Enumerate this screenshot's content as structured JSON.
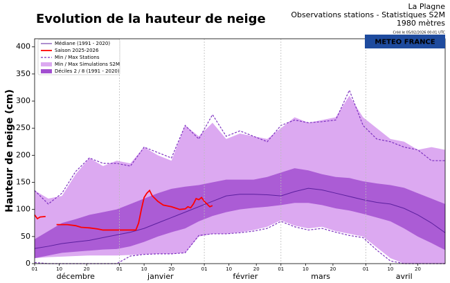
{
  "chart_data": {
    "type": "snow",
    "title": "Evolution de la hauteur de neige",
    "header_lines": [
      "La Plagne",
      "Observations stations - Statistiques S2M",
      "1980 mètres"
    ],
    "created": "Créé le 05/02/2026 00:01 UTC",
    "logo": "METEO FRANCE",
    "ylabel": "Hauteur de neige (cm)",
    "xlim": [
      0,
      150
    ],
    "ylim": [
      0,
      415
    ],
    "yticks": [
      0,
      50,
      100,
      150,
      200,
      250,
      300,
      350,
      400
    ],
    "xticks": [
      {
        "value": 0,
        "label": "01"
      },
      {
        "value": 9,
        "label": "10"
      },
      {
        "value": 19,
        "label": "20"
      },
      {
        "value": 31,
        "label": "01"
      },
      {
        "value": 40,
        "label": "10"
      },
      {
        "value": 50,
        "label": "20"
      },
      {
        "value": 62,
        "label": "01"
      },
      {
        "value": 71,
        "label": "10"
      },
      {
        "value": 81,
        "label": "20"
      },
      {
        "value": 90,
        "label": "01"
      },
      {
        "value": 99,
        "label": "10"
      },
      {
        "value": 109,
        "label": "20"
      },
      {
        "value": 121,
        "label": "01"
      },
      {
        "value": 130,
        "label": "10"
      },
      {
        "value": 140,
        "label": "20"
      }
    ],
    "month_labels": [
      {
        "value": 15,
        "label": "décembre"
      },
      {
        "value": 46,
        "label": "janvier"
      },
      {
        "value": 77,
        "label": "février"
      },
      {
        "value": 104.5,
        "label": "mars"
      },
      {
        "value": 135,
        "label": "avril"
      }
    ],
    "xgrid": [
      31,
      62,
      90,
      121
    ],
    "x": [
      0,
      5,
      10,
      15,
      20,
      25,
      30,
      35,
      40,
      45,
      50,
      55,
      60,
      65,
      70,
      75,
      80,
      85,
      90,
      95,
      100,
      105,
      110,
      115,
      120,
      125,
      130,
      135,
      140,
      145,
      150
    ],
    "series": [
      {
        "name": "Médiane (1991 - 2020)",
        "kind": "line",
        "color": "#5b1f9e",
        "values": [
          28,
          32,
          37,
          40,
          43,
          48,
          53,
          58,
          65,
          75,
          85,
          95,
          105,
          115,
          125,
          128,
          128,
          127,
          125,
          133,
          139,
          136,
          130,
          124,
          118,
          113,
          110,
          102,
          90,
          75,
          57
        ]
      },
      {
        "name": "Saison 2025-2026",
        "kind": "line",
        "color": "#ff0000",
        "x": [
          0,
          1,
          2,
          4,
          6,
          8,
          12,
          15,
          17,
          20,
          23,
          25,
          30,
          35,
          37,
          38,
          39,
          40,
          41,
          42,
          43,
          45,
          47,
          50,
          53,
          55,
          56,
          57,
          58,
          59,
          60,
          61,
          62,
          63,
          64,
          65
        ],
        "values": [
          90,
          83,
          86,
          87,
          null,
          72,
          72,
          70,
          67,
          66,
          64,
          62,
          62,
          62,
          62,
          75,
          100,
          122,
          130,
          135,
          125,
          115,
          108,
          105,
          100,
          101,
          105,
          103,
          110,
          120,
          118,
          122,
          115,
          110,
          105,
          107
        ]
      },
      {
        "name": "Min / Max Stations",
        "kind": "dashed-band",
        "color": "#7b2fbf",
        "lower": [
          2,
          0,
          0,
          0,
          0,
          0,
          0,
          14,
          17,
          18,
          18,
          20,
          52,
          55,
          55,
          57,
          60,
          65,
          78,
          68,
          62,
          65,
          58,
          52,
          48,
          25,
          5,
          0,
          0,
          0,
          0
        ],
        "upper": [
          135,
          110,
          130,
          170,
          195,
          185,
          185,
          180,
          215,
          205,
          195,
          255,
          230,
          275,
          235,
          245,
          235,
          225,
          255,
          265,
          260,
          262,
          265,
          320,
          255,
          230,
          225,
          215,
          210,
          190,
          190
        ]
      },
      {
        "name": "Min / Max Simulations S2M",
        "kind": "band",
        "color": "#dca9f1",
        "lower": [
          10,
          12,
          13,
          14,
          15,
          15,
          15,
          16,
          17,
          18,
          18,
          20,
          50,
          55,
          55,
          58,
          62,
          68,
          80,
          70,
          65,
          68,
          60,
          55,
          50,
          30,
          10,
          0,
          0,
          0,
          0
        ],
        "upper": [
          135,
          120,
          125,
          165,
          195,
          180,
          190,
          185,
          215,
          200,
          190,
          255,
          235,
          260,
          230,
          240,
          235,
          230,
          250,
          270,
          260,
          265,
          270,
          310,
          270,
          250,
          230,
          225,
          210,
          215,
          210
        ]
      },
      {
        "name": "Déciles 2 / 8  (1991 - 2020)",
        "kind": "band",
        "color": "#a24fd0",
        "lower": [
          10,
          15,
          20,
          22,
          24,
          26,
          27,
          32,
          40,
          50,
          58,
          65,
          78,
          88,
          95,
          100,
          103,
          105,
          108,
          112,
          112,
          108,
          102,
          98,
          92,
          85,
          78,
          65,
          50,
          38,
          25
        ],
        "upper": [
          45,
          60,
          75,
          82,
          90,
          95,
          100,
          110,
          120,
          130,
          138,
          142,
          145,
          150,
          155,
          155,
          155,
          160,
          168,
          176,
          172,
          165,
          160,
          158,
          152,
          148,
          145,
          140,
          130,
          120,
          110
        ]
      }
    ]
  }
}
